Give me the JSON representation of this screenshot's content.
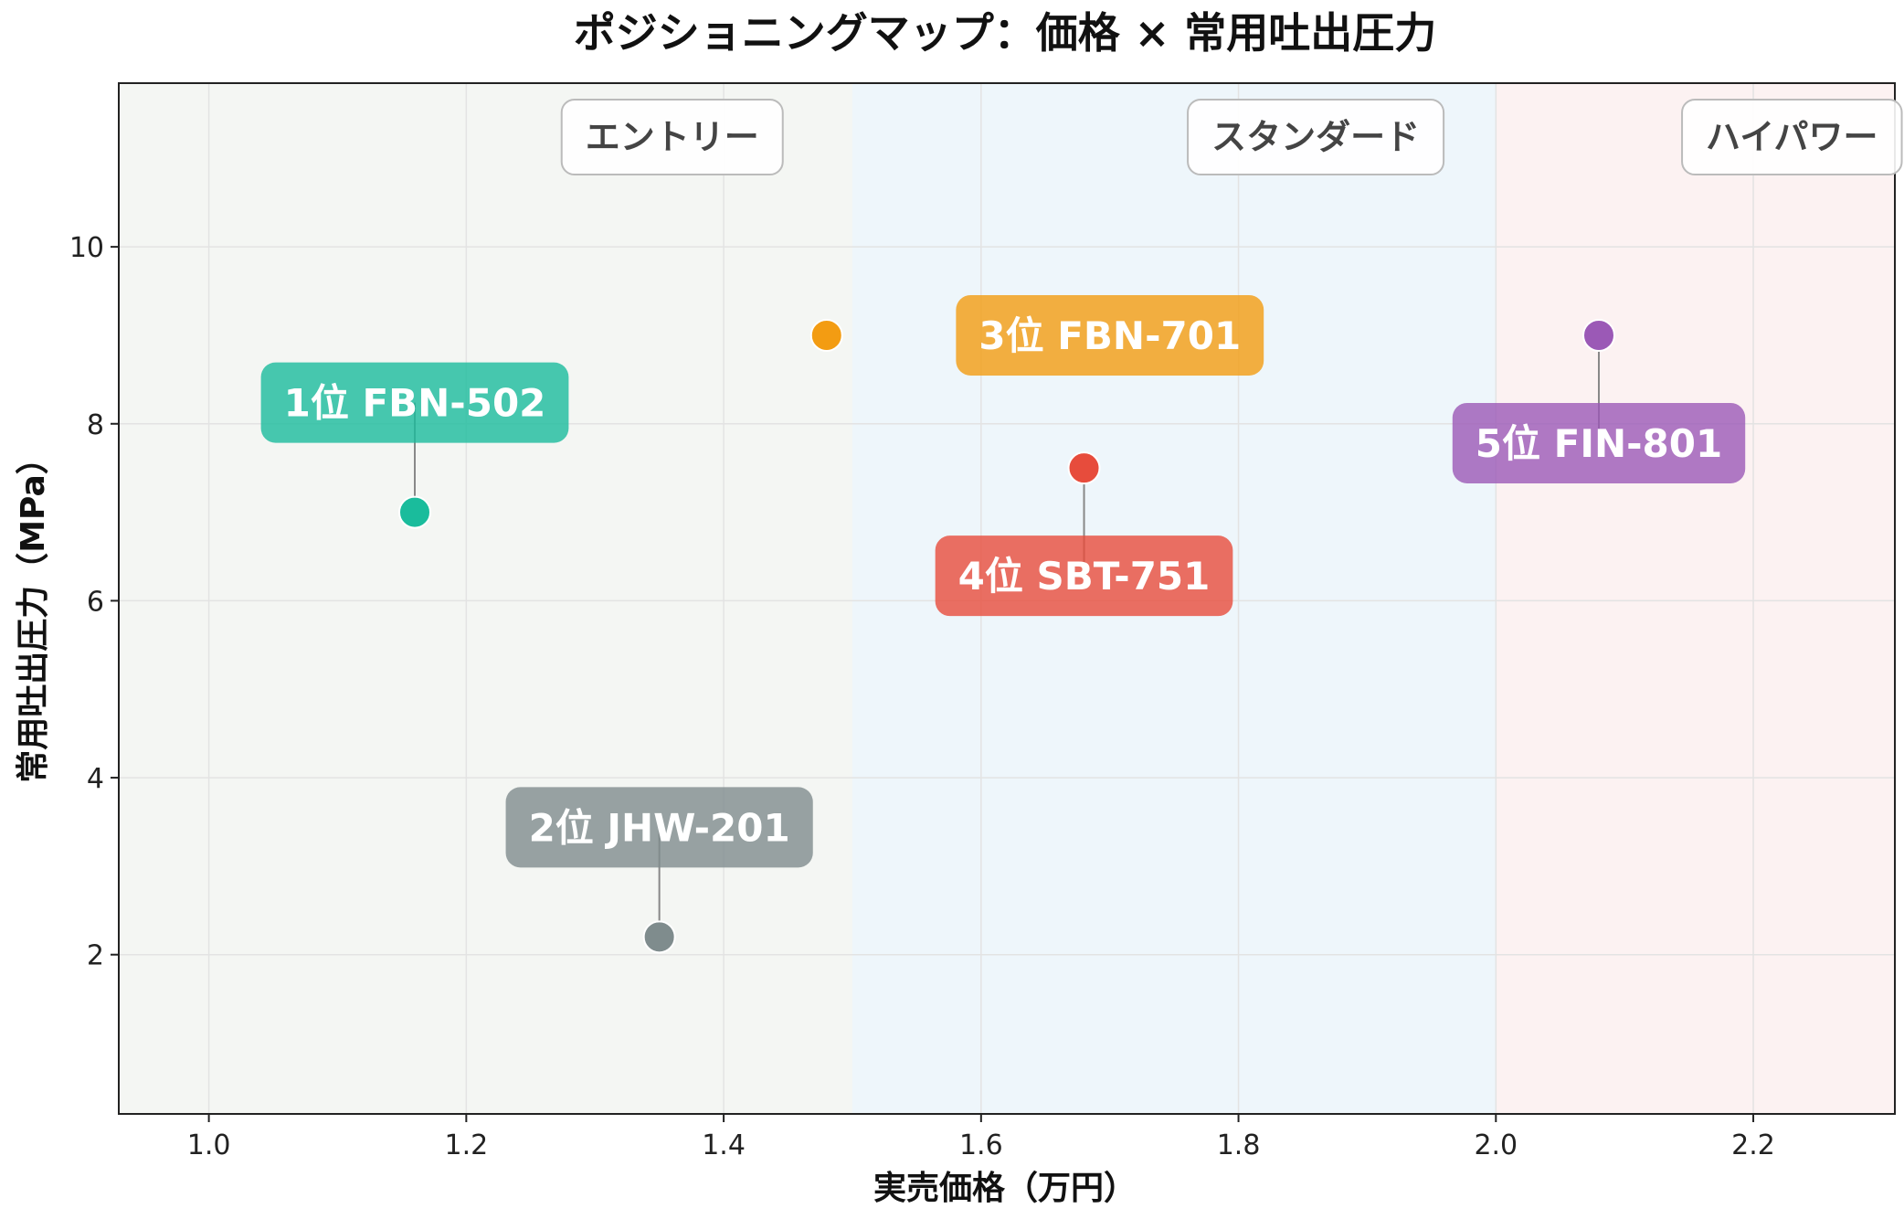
{
  "chart_data": {
    "type": "scatter",
    "title": "ポジショニングマップ：価格 × 常用吐出圧力",
    "xlabel": "実売価格（万円）",
    "ylabel": "常用吐出圧力（MPa）",
    "xlim": [
      0.93,
      2.31
    ],
    "ylim": [
      0.2,
      11.85
    ],
    "xticks": [
      1.0,
      1.2,
      1.4,
      1.6,
      1.8,
      2.0,
      2.2
    ],
    "xtick_labels": [
      "1.0",
      "1.2",
      "1.4",
      "1.6",
      "1.8",
      "2.0",
      "2.2"
    ],
    "yticks": [
      2,
      4,
      6,
      8,
      10
    ],
    "ytick_labels": [
      "2",
      "4",
      "6",
      "8",
      "10"
    ],
    "grid": true,
    "regions": [
      {
        "label": "エントリー",
        "x_range": [
          0.93,
          1.5
        ],
        "color": "#f4f6f3"
      },
      {
        "label": "スタンダード",
        "x_range": [
          1.5,
          2.0
        ],
        "color": "#eef6fb"
      },
      {
        "label": "ハイパワー",
        "x_range": [
          2.0,
          2.31
        ],
        "color": "#fcf2f2"
      }
    ],
    "points": [
      {
        "label": "1位 FBN-502",
        "x": 1.16,
        "y": 7.0,
        "color": "#1abc9c",
        "label_pos": "above"
      },
      {
        "label": "2位 JHW-201",
        "x": 1.35,
        "y": 2.2,
        "color": "#7f8c8d",
        "label_pos": "above"
      },
      {
        "label": "3位 FBN-701",
        "x": 1.48,
        "y": 9.0,
        "color": "#f39c12",
        "label_pos": "right"
      },
      {
        "label": "4位 SBT-751",
        "x": 1.68,
        "y": 7.5,
        "color": "#e74c3c",
        "label_pos": "below"
      },
      {
        "label": "5位 FIN-801",
        "x": 2.08,
        "y": 9.0,
        "color": "#9b59b6",
        "label_pos": "below"
      }
    ]
  }
}
